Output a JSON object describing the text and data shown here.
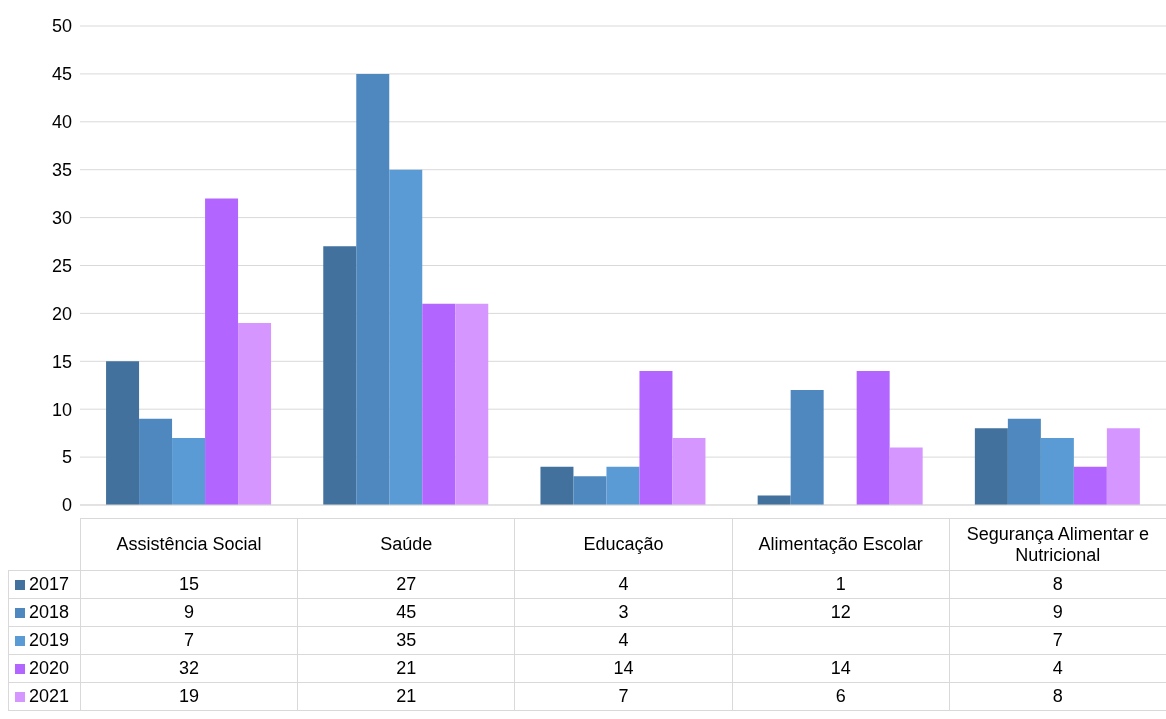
{
  "chart_data": {
    "type": "bar",
    "categories": [
      "Assistência Social",
      "Saúde",
      "Educação",
      "Alimentação Escolar",
      "Segurança Alimentar e Nutricional"
    ],
    "series": [
      {
        "name": "2017",
        "color": "#41719c",
        "values": [
          15,
          27,
          4,
          1,
          8
        ]
      },
      {
        "name": "2018",
        "color": "#4e88be",
        "values": [
          9,
          45,
          3,
          12,
          9
        ]
      },
      {
        "name": "2019",
        "color": "#5b9bd5",
        "values": [
          7,
          35,
          4,
          null,
          7
        ]
      },
      {
        "name": "2020",
        "color": "#b266ff",
        "values": [
          32,
          21,
          14,
          14,
          4
        ]
      },
      {
        "name": "2021",
        "color": "#d597ff",
        "values": [
          19,
          21,
          7,
          6,
          8
        ]
      }
    ],
    "ylim": [
      0,
      50
    ],
    "yticks": [
      0,
      5,
      10,
      15,
      20,
      25,
      30,
      35,
      40,
      45,
      50
    ],
    "grid": "y",
    "legend": "bottom",
    "data_labels": true
  }
}
